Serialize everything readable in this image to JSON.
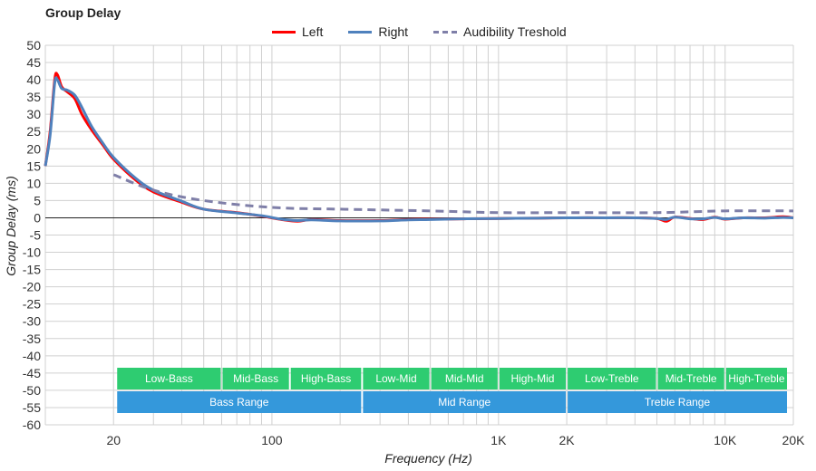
{
  "title": "Group Delay",
  "legend": [
    {
      "name": "Left",
      "color": "#ff0000",
      "style": "solid"
    },
    {
      "name": "Right",
      "color": "#4f81bd",
      "style": "solid"
    },
    {
      "name": "Audibility Treshold",
      "color": "#7f7fa8",
      "style": "dash"
    }
  ],
  "chart_data": {
    "type": "line",
    "title": "Group Delay",
    "xlabel": "Frequency (Hz)",
    "ylabel": "Group Delay (ms)",
    "xscale": "log",
    "xlim": [
      10,
      20000
    ],
    "ylim": [
      -60,
      50
    ],
    "y_ticks": [
      50,
      45,
      40,
      35,
      30,
      25,
      20,
      15,
      10,
      5,
      0,
      -5,
      -10,
      -15,
      -20,
      -25,
      -30,
      -35,
      -40,
      -45,
      -50,
      -55,
      -60
    ],
    "x_tick_labels": [
      {
        "value": 20,
        "label": "20"
      },
      {
        "value": 100,
        "label": "100"
      },
      {
        "value": 1000,
        "label": "1K"
      },
      {
        "value": 2000,
        "label": "2K"
      },
      {
        "value": 10000,
        "label": "10K"
      },
      {
        "value": 20000,
        "label": "20K"
      }
    ],
    "grid": true,
    "legend_position": "top-center",
    "series": [
      {
        "name": "Left",
        "color": "#ff0000",
        "style": "solid",
        "x": [
          10,
          10.5,
          11,
          11.3,
          11.8,
          12.5,
          13.5,
          14.5,
          16,
          18,
          20,
          25,
          30,
          40,
          50,
          70,
          90,
          110,
          130,
          150,
          200,
          300,
          400,
          500,
          700,
          1000,
          1500,
          2000,
          3000,
          4000,
          5000,
          5500,
          6000,
          7000,
          8000,
          9000,
          10000,
          12000,
          15000,
          18000,
          20000
        ],
        "y": [
          15,
          25,
          40,
          41.5,
          38,
          36.5,
          34.5,
          30,
          25.5,
          21,
          17,
          11,
          7.5,
          4.5,
          2.5,
          1.5,
          0.5,
          -0.5,
          -1,
          -0.5,
          -0.8,
          -0.8,
          -0.5,
          -0.4,
          -0.3,
          -0.2,
          -0.1,
          0,
          0,
          0,
          -0.2,
          -1,
          0.2,
          -0.2,
          -0.5,
          0.2,
          -0.4,
          0,
          0,
          0.3,
          0
        ]
      },
      {
        "name": "Right",
        "color": "#4f81bd",
        "style": "solid",
        "x": [
          10,
          10.5,
          11,
          11.3,
          11.8,
          12.5,
          13.5,
          14.5,
          16,
          18,
          20,
          25,
          30,
          40,
          50,
          70,
          90,
          110,
          130,
          150,
          200,
          300,
          400,
          500,
          700,
          1000,
          1500,
          2000,
          3000,
          4000,
          5000,
          5500,
          6000,
          7000,
          8000,
          9000,
          10000,
          12000,
          15000,
          18000,
          20000
        ],
        "y": [
          15,
          24,
          39,
          40,
          37.5,
          37,
          35.5,
          32,
          26.5,
          21.5,
          17.5,
          11.5,
          8,
          4.8,
          2.5,
          1.4,
          0.6,
          -0.4,
          -0.8,
          -0.6,
          -0.9,
          -0.9,
          -0.6,
          -0.5,
          -0.3,
          -0.2,
          -0.1,
          0,
          0,
          0,
          -0.2,
          -0.5,
          0.2,
          -0.3,
          -0.3,
          0.1,
          -0.3,
          0,
          -0.1,
          0.1,
          0
        ]
      },
      {
        "name": "Audibility Treshold",
        "color": "#7f7fa8",
        "style": "dash",
        "x": [
          20,
          30,
          50,
          100,
          200,
          500,
          1000,
          2000,
          5000,
          10000,
          20000
        ],
        "y": [
          12.5,
          8,
          5,
          3,
          2.5,
          2,
          1.5,
          1.5,
          1.5,
          2,
          2
        ]
      }
    ],
    "bands": [
      {
        "row": 1,
        "label": "Low-Bass",
        "from": 20,
        "to": 60,
        "color": "#2ecc71"
      },
      {
        "row": 1,
        "label": "Mid-Bass",
        "from": 60,
        "to": 120,
        "color": "#2ecc71"
      },
      {
        "row": 1,
        "label": "High-Bass",
        "from": 120,
        "to": 250,
        "color": "#2ecc71"
      },
      {
        "row": 1,
        "label": "Low-Mid",
        "from": 250,
        "to": 500,
        "color": "#2ecc71"
      },
      {
        "row": 1,
        "label": "Mid-Mid",
        "from": 500,
        "to": 1000,
        "color": "#2ecc71"
      },
      {
        "row": 1,
        "label": "High-Mid",
        "from": 1000,
        "to": 2000,
        "color": "#2ecc71"
      },
      {
        "row": 1,
        "label": "Low-Treble",
        "from": 2000,
        "to": 5000,
        "color": "#2ecc71"
      },
      {
        "row": 1,
        "label": "Mid-Treble",
        "from": 5000,
        "to": 10000,
        "color": "#2ecc71"
      },
      {
        "row": 1,
        "label": "High-Treble",
        "from": 10000,
        "to": 20000,
        "color": "#2ecc71"
      },
      {
        "row": 2,
        "label": "Bass Range",
        "from": 20,
        "to": 250,
        "color": "#3498db"
      },
      {
        "row": 2,
        "label": "Mid Range",
        "from": 250,
        "to": 2000,
        "color": "#3498db"
      },
      {
        "row": 2,
        "label": "Treble Range",
        "from": 2000,
        "to": 20000,
        "color": "#3498db"
      }
    ]
  }
}
